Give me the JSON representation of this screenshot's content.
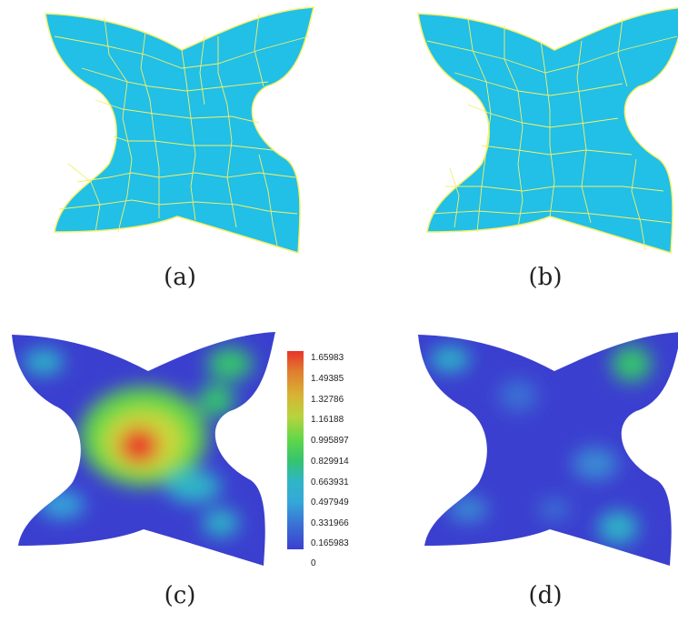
{
  "panels": [
    {
      "caption": "(a)",
      "kind": "mesh"
    },
    {
      "caption": "(b)",
      "kind": "mesh"
    },
    {
      "caption": "(c)",
      "kind": "heatmap"
    },
    {
      "caption": "(d)",
      "kind": "heatmap"
    }
  ],
  "colors": {
    "mesh_fill": "#22bfe6",
    "mesh_edge": "#f4f06a",
    "heat_low": "#3b3fcf",
    "heat_high": "#e8342a"
  },
  "colorbar": {
    "labels": [
      "1.65983",
      "1.49385",
      "1.32786",
      "1.16188",
      "0.995897",
      "0.829914",
      "0.663931",
      "0.497949",
      "0.331966",
      "0.165983",
      "0"
    ]
  }
}
